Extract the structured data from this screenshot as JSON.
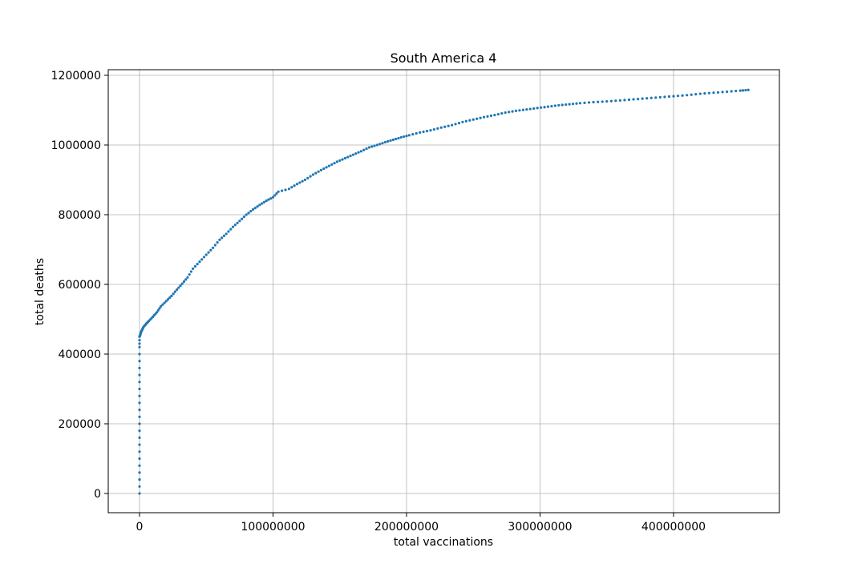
{
  "chart_data": {
    "type": "scatter",
    "title": "South America 4",
    "xlabel": "total vaccinations",
    "ylabel": "total deaths",
    "xlim": [
      -23000000,
      480000000
    ],
    "ylim": [
      -58000000,
      1218000
    ],
    "ylim_note": "",
    "x_ticks": [
      0,
      100000000,
      200000000,
      300000000,
      400000000
    ],
    "x_tick_labels": [
      "0",
      "100000000",
      "200000000",
      "300000000",
      "400000000"
    ],
    "y_ticks": [
      0,
      200000,
      400000,
      600000,
      800000,
      1000000,
      1200000
    ],
    "y_tick_labels": [
      "0",
      "200000",
      "400000",
      "600000",
      "800000",
      "1000000",
      "1200000"
    ],
    "grid": true,
    "marker_color": "#1f77b4",
    "points": [
      [
        0,
        0
      ],
      [
        0,
        60000
      ],
      [
        0,
        120000
      ],
      [
        0,
        180000
      ],
      [
        0,
        240000
      ],
      [
        0,
        300000
      ],
      [
        0,
        360000
      ],
      [
        0,
        420000
      ],
      [
        0,
        450000
      ],
      [
        500000,
        455000
      ],
      [
        1000000,
        462000
      ],
      [
        2000000,
        470000
      ],
      [
        3000000,
        478000
      ],
      [
        5000000,
        487000
      ],
      [
        7000000,
        495000
      ],
      [
        10000000,
        507000
      ],
      [
        13000000,
        520000
      ],
      [
        16000000,
        537000
      ],
      [
        20000000,
        552000
      ],
      [
        24000000,
        567000
      ],
      [
        28000000,
        585000
      ],
      [
        32000000,
        602000
      ],
      [
        36000000,
        620000
      ],
      [
        40000000,
        645000
      ],
      [
        45000000,
        665000
      ],
      [
        50000000,
        685000
      ],
      [
        55000000,
        705000
      ],
      [
        60000000,
        728000
      ],
      [
        65000000,
        745000
      ],
      [
        70000000,
        765000
      ],
      [
        75000000,
        782000
      ],
      [
        80000000,
        800000
      ],
      [
        85000000,
        815000
      ],
      [
        90000000,
        828000
      ],
      [
        95000000,
        840000
      ],
      [
        100000000,
        850000
      ],
      [
        104000000,
        866000
      ],
      [
        112000000,
        874000
      ],
      [
        118000000,
        888000
      ],
      [
        124000000,
        900000
      ],
      [
        130000000,
        915000
      ],
      [
        136000000,
        928000
      ],
      [
        142000000,
        940000
      ],
      [
        148000000,
        952000
      ],
      [
        154000000,
        962000
      ],
      [
        160000000,
        972000
      ],
      [
        166000000,
        982000
      ],
      [
        172000000,
        993000
      ],
      [
        178000000,
        1000000
      ],
      [
        184000000,
        1008000
      ],
      [
        190000000,
        1015000
      ],
      [
        196000000,
        1022000
      ],
      [
        202000000,
        1028000
      ],
      [
        210000000,
        1036000
      ],
      [
        218000000,
        1042000
      ],
      [
        226000000,
        1050000
      ],
      [
        234000000,
        1057000
      ],
      [
        242000000,
        1066000
      ],
      [
        250000000,
        1073000
      ],
      [
        258000000,
        1080000
      ],
      [
        266000000,
        1086000
      ],
      [
        274000000,
        1093000
      ],
      [
        282000000,
        1098000
      ],
      [
        290000000,
        1102000
      ],
      [
        298000000,
        1106000
      ],
      [
        306000000,
        1110000
      ],
      [
        314000000,
        1114000
      ],
      [
        322000000,
        1117000
      ],
      [
        330000000,
        1120000
      ],
      [
        340000000,
        1123000
      ],
      [
        350000000,
        1125000
      ],
      [
        360000000,
        1128000
      ],
      [
        370000000,
        1131000
      ],
      [
        380000000,
        1134000
      ],
      [
        390000000,
        1137000
      ],
      [
        400000000,
        1140000
      ],
      [
        410000000,
        1143000
      ],
      [
        420000000,
        1147000
      ],
      [
        430000000,
        1150000
      ],
      [
        440000000,
        1153000
      ],
      [
        450000000,
        1156000
      ],
      [
        456000000,
        1158000
      ]
    ]
  }
}
